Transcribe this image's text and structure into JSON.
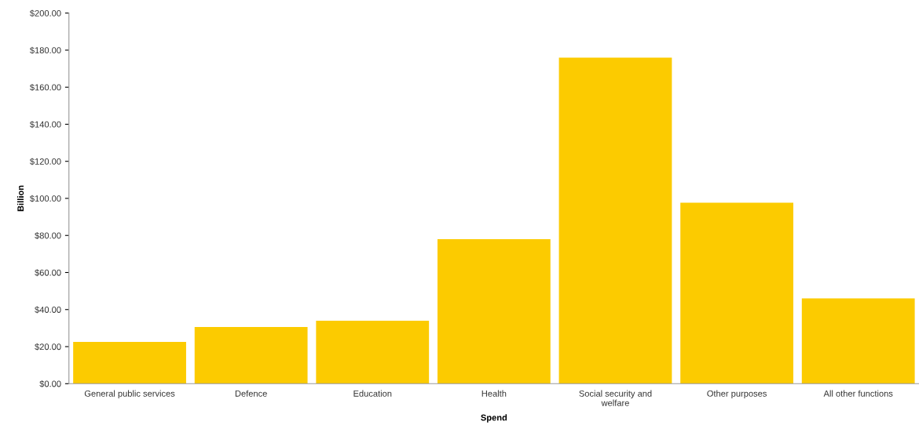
{
  "chart_data": {
    "type": "bar",
    "xlabel": "Spend",
    "ylabel": "Billion",
    "categories": [
      "General public services",
      "Defence",
      "Education",
      "Health",
      "Social security and\nwelfare",
      "Other purposes",
      "All other functions"
    ],
    "values": [
      22.5,
      30.6,
      34,
      78,
      176,
      97.7,
      46
    ],
    "color": "#fccb00",
    "ylim": [
      0,
      200
    ],
    "yticks": [
      {
        "value": 0,
        "label": "$0.00"
      },
      {
        "value": 20,
        "label": "$20.00"
      },
      {
        "value": 40,
        "label": "$40.00"
      },
      {
        "value": 60,
        "label": "$60.00"
      },
      {
        "value": 80,
        "label": "$80.00"
      },
      {
        "value": 100,
        "label": "$100.00"
      },
      {
        "value": 120,
        "label": "$120.00"
      },
      {
        "value": 140,
        "label": "$140.00"
      },
      {
        "value": 160,
        "label": "$160.00"
      },
      {
        "value": 180,
        "label": "$180.00"
      },
      {
        "value": 200,
        "label": "$200.00"
      }
    ],
    "grid": false,
    "legend": false
  }
}
